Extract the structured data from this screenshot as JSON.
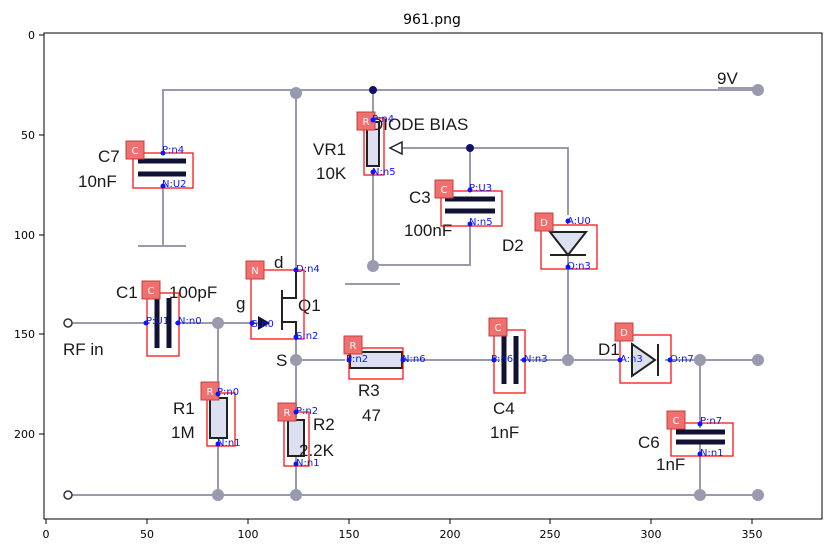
{
  "title": "961.png",
  "axes": {
    "x_ticks": [
      "0",
      "50",
      "100",
      "150",
      "200",
      "250",
      "300",
      "350"
    ],
    "y_ticks": [
      "0",
      "50",
      "100",
      "150",
      "200"
    ]
  },
  "circuit_labels": {
    "supply": "9V",
    "diode_bias": "DIODE BIAS",
    "vr1": "VR1",
    "vr1_value": "10K",
    "c7": "C7",
    "c7_value": "10nF",
    "c3": "C3",
    "c3_value": "100nF",
    "d2": "D2",
    "d": "d",
    "g": "g",
    "s": "S",
    "q1": "Q1",
    "c1": "C1",
    "c1_value": "100pF",
    "rf_in": "RF in",
    "r1": "R1",
    "r1_value": "1M",
    "r2": "R2",
    "r2_value": "2.2K",
    "r3": "R3",
    "r3_value": "47",
    "c4": "C4",
    "c4_value": "1nF",
    "d1": "D1",
    "c6": "C6",
    "c6_value": "1nF"
  },
  "annotations": [
    {
      "id": "c7",
      "type": "C",
      "pins": [
        "P:n4",
        "N:U2"
      ]
    },
    {
      "id": "vr1",
      "type": "R",
      "pins": [
        "P:n4",
        "N:n5"
      ]
    },
    {
      "id": "c3",
      "type": "C",
      "pins": [
        "P:U3",
        "N:n5"
      ]
    },
    {
      "id": "d2",
      "type": "D",
      "pins": [
        "A:U0",
        "O:n3"
      ]
    },
    {
      "id": "q1",
      "type": "N",
      "pins": [
        "D:n4",
        "G:n0",
        "S:n2"
      ]
    },
    {
      "id": "c1",
      "type": "C",
      "pins": [
        "P:U1",
        "N:n0"
      ]
    },
    {
      "id": "r1",
      "type": "R",
      "pins": [
        "P:n0",
        "N:n1"
      ]
    },
    {
      "id": "r2",
      "type": "R",
      "pins": [
        "P:n2",
        "N:n1"
      ]
    },
    {
      "id": "r3",
      "type": "R",
      "pins": [
        "P:n2",
        "N:n6"
      ]
    },
    {
      "id": "c4",
      "type": "C",
      "pins": [
        "P:n6",
        "N:n3"
      ]
    },
    {
      "id": "d1",
      "type": "D",
      "pins": [
        "A:n3",
        "O:n7"
      ]
    },
    {
      "id": "c6",
      "type": "C",
      "pins": [
        "P:n7",
        "N:n1"
      ]
    }
  ],
  "colors": {
    "box": "#ff0000",
    "tag": "#f07070",
    "pin": "#0a14ff",
    "wire": "#9a9aae",
    "component": "#111133"
  }
}
